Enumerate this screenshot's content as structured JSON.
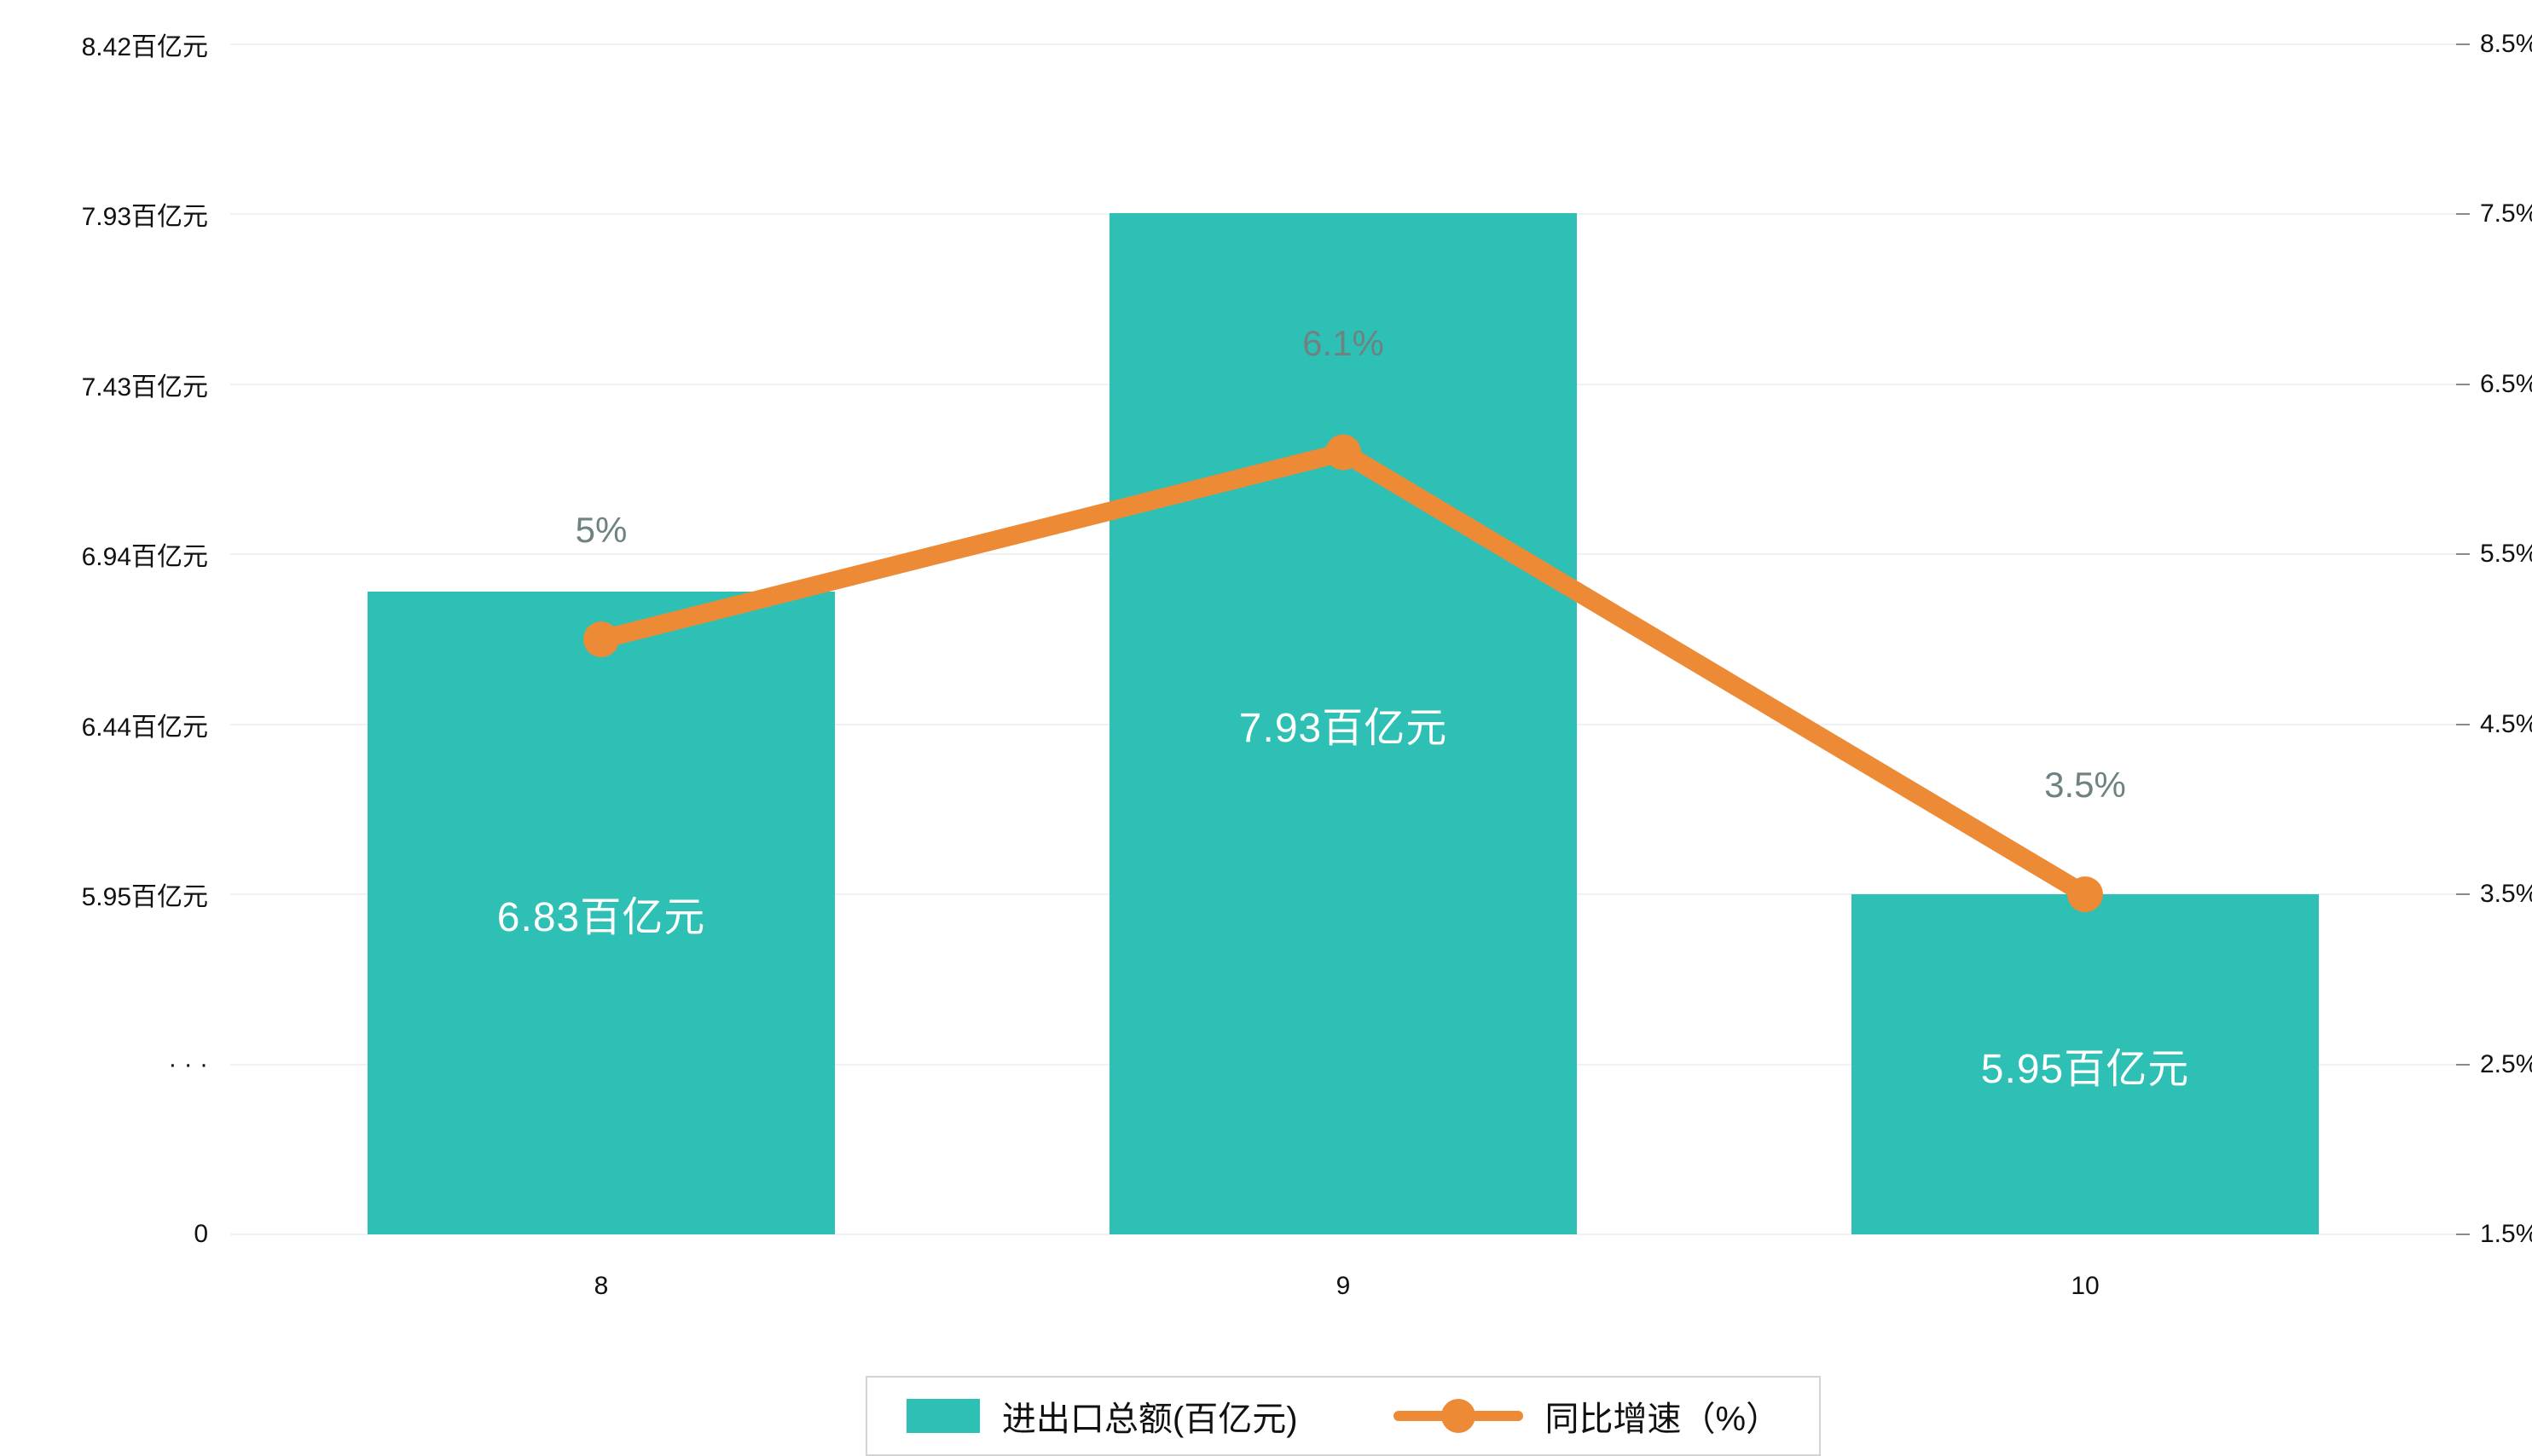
{
  "chart_data": {
    "type": "bar",
    "subtype": "bar-line-combo",
    "categories": [
      "8",
      "9",
      "10"
    ],
    "series": [
      {
        "name": "进出口总额(百亿元)",
        "type": "bar",
        "axis": "left",
        "values": [
          6.83,
          7.93,
          5.95
        ],
        "data_labels": [
          "6.83百亿元",
          "7.93百亿元",
          "5.95百亿元"
        ],
        "color": "#2ec0b4"
      },
      {
        "name": "同比增速（%）",
        "type": "line",
        "axis": "right",
        "values": [
          5,
          6.1,
          3.5
        ],
        "data_labels": [
          "5%",
          "6.1%",
          "3.5%"
        ],
        "color": "#ed8a36"
      }
    ],
    "left_axis": {
      "tick_labels": [
        "8.42百亿元",
        "7.93百亿元",
        "7.43百亿元",
        "6.94百亿元",
        "6.44百亿元",
        "5.95百亿元",
        "· · ·",
        "0"
      ],
      "tick_values": [
        8.42,
        7.93,
        7.43,
        6.94,
        6.44,
        5.95,
        null,
        0
      ],
      "axis_break": true
    },
    "right_axis": {
      "tick_labels": [
        "8.5%",
        "7.5%",
        "6.5%",
        "5.5%",
        "4.5%",
        "3.5%",
        "2.5%",
        "1.5%"
      ],
      "min": 1.5,
      "max": 8.5
    },
    "grid": true,
    "legend_position": "bottom"
  },
  "legend": {
    "items": [
      {
        "label": "进出口总额(百亿元)",
        "swatch": "bar-swatch"
      },
      {
        "label": "同比增速（%）",
        "swatch": "line-swatch"
      }
    ]
  },
  "colors": {
    "bar": "#2ec0b4",
    "line": "#ed8a36",
    "growth_label_text": "#6f8282",
    "bar_label_text": "#ffffff",
    "axis_text": "#111111",
    "grid": "#eef2f6"
  }
}
